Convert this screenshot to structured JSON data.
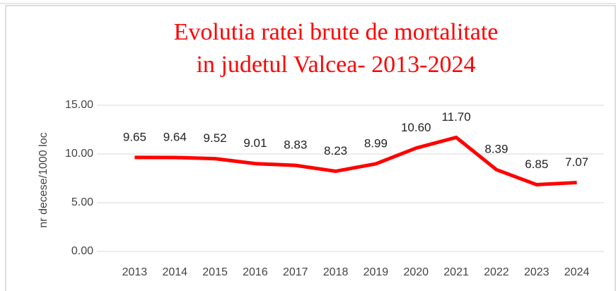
{
  "chart_data": {
    "type": "line",
    "title": [
      "Evolutia ratei brute de mortalitate",
      "in judetul Valcea- 2013-2024"
    ],
    "y_axis_label": "nr decese/1000 loc",
    "categories": [
      "2013",
      "2014",
      "2015",
      "2016",
      "2017",
      "2018",
      "2019",
      "2020",
      "2021",
      "2022",
      "2023",
      "2024"
    ],
    "values": [
      9.65,
      9.64,
      9.52,
      9.01,
      8.83,
      8.23,
      8.99,
      10.6,
      11.7,
      8.39,
      6.85,
      7.07
    ],
    "value_labels": [
      "9.65",
      "9.64",
      "9.52",
      "9.01",
      "8.83",
      "8.23",
      "8.99",
      "10.60",
      "11.70",
      "8.39",
      "6.85",
      "7.07"
    ],
    "color": "#ff0000",
    "ylim": [
      0,
      15
    ],
    "yticks": [
      {
        "value": 0,
        "label": "0.00"
      },
      {
        "value": 5,
        "label": "5.00"
      },
      {
        "value": 10,
        "label": "10.00"
      },
      {
        "value": 15,
        "label": "15.00"
      }
    ],
    "grid": true
  }
}
